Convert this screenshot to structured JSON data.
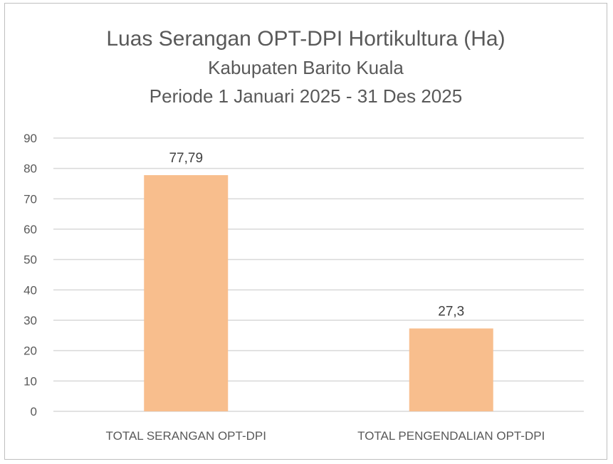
{
  "chart_data": {
    "type": "bar",
    "title": "Luas Serangan OPT-DPI Hortikultura (Ha)",
    "subtitle_lines": [
      "Kabupaten Barito Kuala",
      "Periode 1 Januari 2025 - 31 Des 2025"
    ],
    "categories": [
      "TOTAL SERANGAN OPT-DPI",
      "TOTAL PENGENDALIAN OPT-DPI"
    ],
    "values": [
      77.79,
      27.3
    ],
    "data_labels": [
      "77,79",
      "27,3"
    ],
    "ylim": [
      0,
      90
    ],
    "yticks": [
      0,
      10,
      20,
      30,
      40,
      50,
      60,
      70,
      80,
      90
    ],
    "xlabel": "",
    "ylabel": "",
    "grid": true,
    "legend": "none",
    "bar_color": "#f8be8d",
    "grid_color": "#d9d9d9"
  }
}
